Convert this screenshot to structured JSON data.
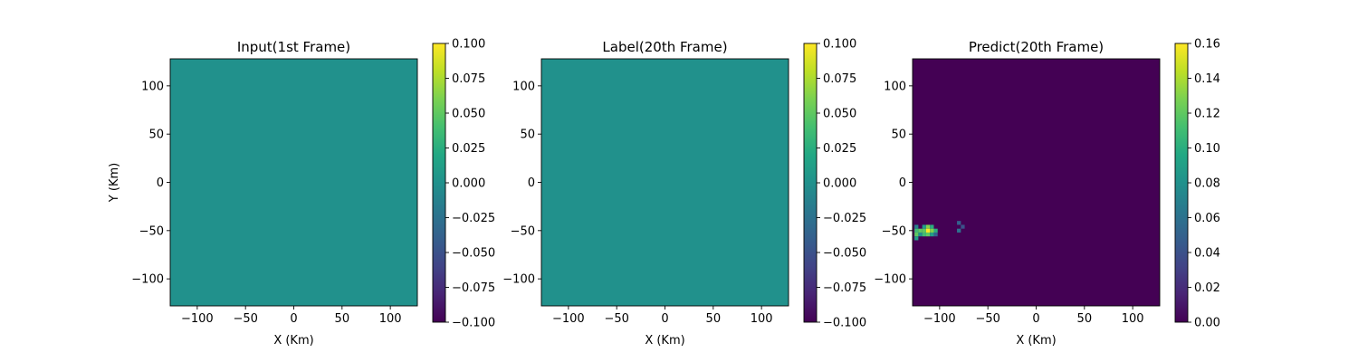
{
  "chart_data": [
    {
      "type": "heatmap",
      "title": "Input(1st Frame)",
      "xlabel": "X (Km)",
      "ylabel": "Y (Km)",
      "xlim": [
        -128,
        128
      ],
      "ylim": [
        -128,
        128
      ],
      "xticks": [
        -100,
        -50,
        0,
        50,
        100
      ],
      "yticks": [
        -100,
        -50,
        0,
        50,
        100
      ],
      "colormap": "viridis",
      "colorbar": {
        "range": [
          -0.1,
          0.1
        ],
        "ticks": [
          "0.100",
          "0.075",
          "0.050",
          "0.025",
          "0.000",
          "−0.025",
          "−0.050",
          "−0.075",
          "−0.100"
        ]
      },
      "field": "uniform",
      "field_value": 0.0,
      "hotspots": []
    },
    {
      "type": "heatmap",
      "title": "Label(20th Frame)",
      "xlabel": "X (Km)",
      "ylabel": "",
      "xlim": [
        -128,
        128
      ],
      "ylim": [
        -128,
        128
      ],
      "xticks": [
        -100,
        -50,
        0,
        50,
        100
      ],
      "yticks": [
        -100,
        -50,
        0,
        50,
        100
      ],
      "colormap": "viridis",
      "colorbar": {
        "range": [
          -0.1,
          0.1
        ],
        "ticks": [
          "0.100",
          "0.075",
          "0.050",
          "0.025",
          "0.000",
          "−0.025",
          "−0.050",
          "−0.075",
          "−0.100"
        ]
      },
      "field": "uniform",
      "field_value": 0.0,
      "hotspots": []
    },
    {
      "type": "heatmap",
      "title": "Predict(20th Frame)",
      "xlabel": "X (Km)",
      "ylabel": "",
      "xlim": [
        -128,
        128
      ],
      "ylim": [
        -128,
        128
      ],
      "xticks": [
        -100,
        -50,
        0,
        50,
        100
      ],
      "yticks": [
        -100,
        -50,
        0,
        50,
        100
      ],
      "colormap": "viridis",
      "colorbar": {
        "range": [
          0,
          0.16
        ],
        "ticks": [
          "0.16",
          "0.14",
          "0.12",
          "0.10",
          "0.08",
          "0.06",
          "0.04",
          "0.02",
          "0.00"
        ]
      },
      "field": "mostly zero with a small hotspot",
      "field_value": 0.0,
      "hotspots": [
        {
          "x": -126,
          "y": -48,
          "v": 0.07
        },
        {
          "x": -126,
          "y": -52,
          "v": 0.11
        },
        {
          "x": -126,
          "y": -56,
          "v": 0.12
        },
        {
          "x": -126,
          "y": -60,
          "v": 0.09
        },
        {
          "x": -122,
          "y": -52,
          "v": 0.12
        },
        {
          "x": -122,
          "y": -56,
          "v": 0.08
        },
        {
          "x": -118,
          "y": -48,
          "v": 0.09
        },
        {
          "x": -118,
          "y": -52,
          "v": 0.12
        },
        {
          "x": -118,
          "y": -56,
          "v": 0.11
        },
        {
          "x": -114,
          "y": -48,
          "v": 0.13
        },
        {
          "x": -114,
          "y": -52,
          "v": 0.16
        },
        {
          "x": -114,
          "y": -56,
          "v": 0.12
        },
        {
          "x": -110,
          "y": -48,
          "v": 0.1
        },
        {
          "x": -110,
          "y": -52,
          "v": 0.13
        },
        {
          "x": -110,
          "y": -56,
          "v": 0.09
        },
        {
          "x": -106,
          "y": -52,
          "v": 0.1
        },
        {
          "x": -106,
          "y": -56,
          "v": 0.05
        },
        {
          "x": -82,
          "y": -44,
          "v": 0.05
        },
        {
          "x": -78,
          "y": -48,
          "v": 0.04
        },
        {
          "x": -82,
          "y": -52,
          "v": 0.06
        }
      ]
    }
  ]
}
